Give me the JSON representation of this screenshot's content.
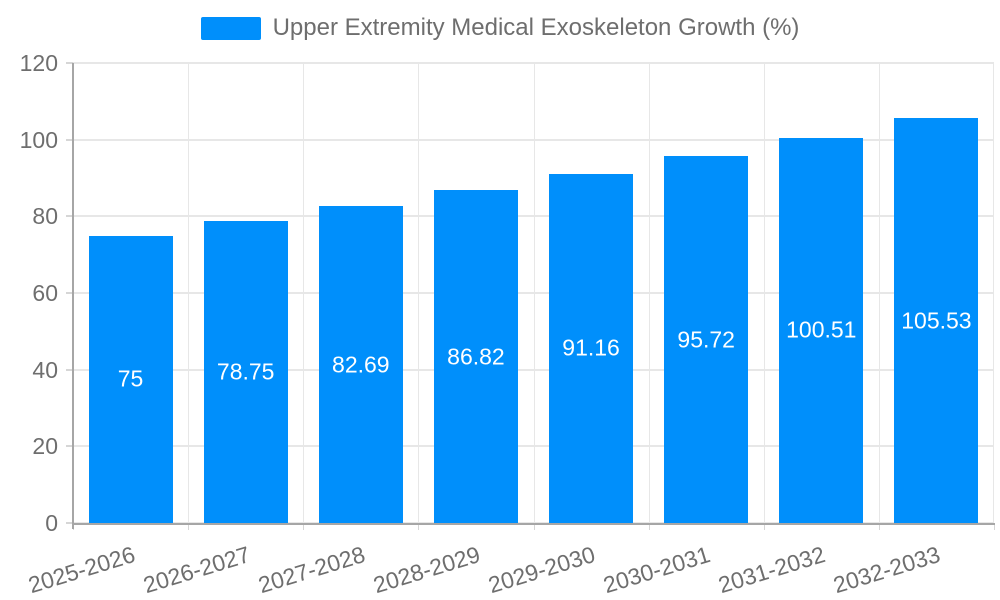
{
  "chart_data": {
    "type": "bar",
    "title": "Upper Extremity Medical Exoskeleton Growth (%)",
    "legend": {
      "position": "top",
      "entries": [
        "Upper Extremity Medical Exoskeleton Growth (%)"
      ]
    },
    "categories": [
      "2025-2026",
      "2026-2027",
      "2027-2028",
      "2028-2029",
      "2029-2030",
      "2030-2031",
      "2031-2032",
      "2032-2033"
    ],
    "values": [
      75,
      78.75,
      82.69,
      86.82,
      91.16,
      95.72,
      100.51,
      105.53
    ],
    "value_labels": [
      "75",
      "78.75",
      "82.69",
      "86.82",
      "91.16",
      "95.72",
      "100.51",
      "105.53"
    ],
    "xlabel": "",
    "ylabel": "",
    "ylim": [
      0,
      120
    ],
    "y_ticks": [
      0,
      20,
      40,
      60,
      80,
      100,
      120
    ],
    "grid": true,
    "colors": {
      "bar": "#008FFB",
      "value_label": "#ffffff",
      "axis_label": "#6e6e6e",
      "legend_label": "#6e6e6e",
      "grid_line": "#e7e7e7",
      "axis_line": "#a6a6a6",
      "tick_line": "#d6d6d6",
      "background": "#ffffff"
    }
  }
}
